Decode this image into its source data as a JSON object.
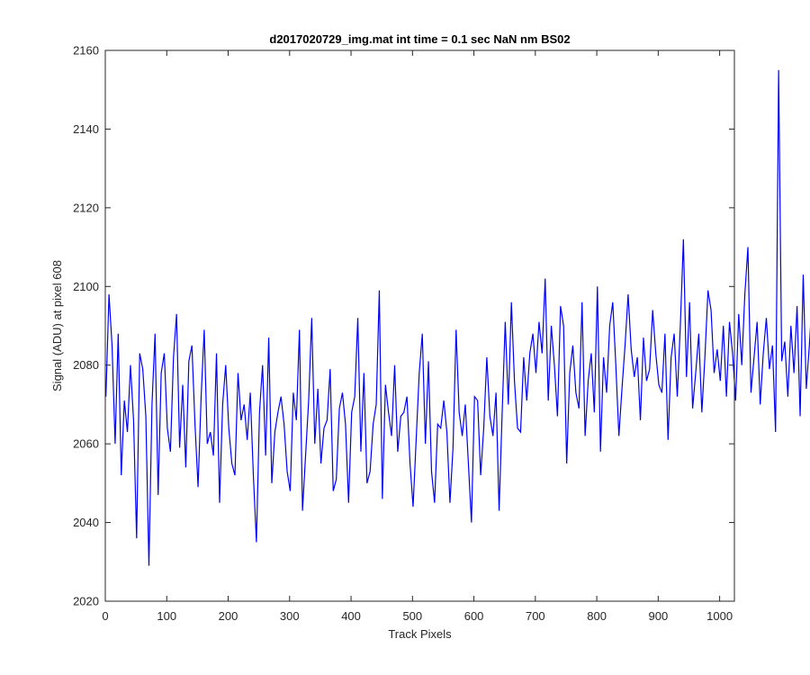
{
  "chart_data": {
    "type": "line",
    "title": "d2017020729_img.mat int time = 0.1 sec  NaN nm BS02",
    "xlabel": "Track Pixels",
    "ylabel": "Signal (ADU) at pixel 608",
    "xlim": [
      0,
      1024
    ],
    "ylim": [
      2020,
      2160
    ],
    "xticks": [
      0,
      100,
      200,
      300,
      400,
      500,
      600,
      700,
      800,
      900,
      1000
    ],
    "yticks": [
      2020,
      2040,
      2060,
      2080,
      2100,
      2120,
      2140,
      2160
    ],
    "xtick_labels": [
      "0",
      "100",
      "200",
      "300",
      "400",
      "500",
      "600",
      "700",
      "800",
      "900",
      "1000"
    ],
    "ytick_labels": [
      "2020",
      "2040",
      "2060",
      "2080",
      "2100",
      "2120",
      "2140",
      "2160"
    ],
    "grid": false,
    "legend": "none",
    "series": [
      {
        "color": "#0000ff",
        "x_start": 1,
        "x_step": 5,
        "values": [
          2072,
          2098,
          2085,
          2060,
          2088,
          2052,
          2071,
          2063,
          2080,
          2066,
          2036,
          2083,
          2079,
          2067,
          2029,
          2070,
          2088,
          2047,
          2078,
          2083,
          2064,
          2058,
          2082,
          2093,
          2059,
          2075,
          2054,
          2081,
          2085,
          2065,
          2049,
          2072,
          2089,
          2060,
          2063,
          2057,
          2083,
          2045,
          2070,
          2080,
          2064,
          2055,
          2052,
          2078,
          2066,
          2070,
          2061,
          2073,
          2052,
          2035,
          2068,
          2080,
          2057,
          2087,
          2050,
          2063,
          2068,
          2072,
          2065,
          2053,
          2048,
          2073,
          2066,
          2089,
          2043,
          2057,
          2071,
          2092,
          2060,
          2074,
          2055,
          2064,
          2066,
          2079,
          2048,
          2051,
          2069,
          2073,
          2065,
          2045,
          2068,
          2072,
          2092,
          2058,
          2078,
          2050,
          2053,
          2065,
          2070,
          2099,
          2046,
          2075,
          2068,
          2062,
          2080,
          2058,
          2067,
          2068,
          2072,
          2055,
          2044,
          2061,
          2078,
          2088,
          2060,
          2081,
          2053,
          2045,
          2065,
          2064,
          2071,
          2063,
          2045,
          2059,
          2089,
          2068,
          2062,
          2070,
          2055,
          2040,
          2072,
          2071,
          2052,
          2064,
          2082,
          2067,
          2062,
          2073,
          2043,
          2068,
          2091,
          2070,
          2096,
          2076,
          2064,
          2063,
          2082,
          2071,
          2083,
          2088,
          2078,
          2091,
          2083,
          2102,
          2071,
          2090,
          2080,
          2067,
          2095,
          2090,
          2055,
          2078,
          2085,
          2073,
          2069,
          2096,
          2062,
          2076,
          2083,
          2068,
          2100,
          2058,
          2082,
          2073,
          2090,
          2096,
          2080,
          2062,
          2074,
          2085,
          2098,
          2084,
          2077,
          2082,
          2066,
          2087,
          2076,
          2079,
          2094,
          2083,
          2075,
          2073,
          2088,
          2061,
          2082,
          2088,
          2072,
          2090,
          2112,
          2077,
          2096,
          2069,
          2078,
          2088,
          2068,
          2082,
          2099,
          2094,
          2078,
          2084,
          2076,
          2090,
          2072,
          2091,
          2083,
          2071,
          2093,
          2080,
          2098,
          2110,
          2073,
          2082,
          2091,
          2070,
          2083,
          2092,
          2079,
          2085,
          2063,
          2155,
          2081,
          2086,
          2072,
          2090,
          2078,
          2095,
          2067,
          2103,
          2074,
          2085,
          2098,
          2063,
          2080,
          2088,
          2082,
          2070,
          2099,
          2083,
          2062,
          2077,
          2093,
          2081,
          2073,
          2086,
          2068,
          2109,
          2074,
          2094,
          2079,
          2070,
          2088,
          2083,
          2061,
          2091,
          2076,
          2085,
          2066,
          2094,
          2078,
          2082,
          2074,
          2097,
          2069,
          2080,
          2088,
          2071,
          2083,
          2062,
          2077,
          2086,
          2056,
          2098,
          2079,
          2071,
          2064,
          2081,
          2070,
          2058,
          2066,
          2047,
          2083,
          2063,
          2069,
          2055,
          2060,
          2085,
          2071,
          2050,
          2066,
          2063,
          2058,
          2074,
          2081,
          2052,
          2067,
          2047,
          2071,
          2063,
          2088,
          2058,
          2061,
          2069,
          2050,
          2066,
          2044,
          2073,
          2062,
          2056,
          2068,
          2070,
          2053,
          2081,
          2062,
          2057,
          2065,
          2038,
          2073,
          2059,
          2062,
          2050,
          2066,
          2035,
          2071,
          2060,
          2056,
          2047,
          2069,
          2063,
          2081,
          2052,
          2058,
          2039,
          2066,
          2072,
          2061,
          2043,
          2060,
          2054,
          2068,
          2055,
          2040,
          2063,
          2073,
          2057,
          2050,
          2065,
          2044,
          2062,
          2058,
          2053,
          2070,
          2046,
          2067,
          2061,
          2055,
          2064,
          2043,
          2060,
          2057,
          2070,
          2063,
          2068,
          2048,
          2074,
          2057,
          2066
        ]
      }
    ]
  }
}
